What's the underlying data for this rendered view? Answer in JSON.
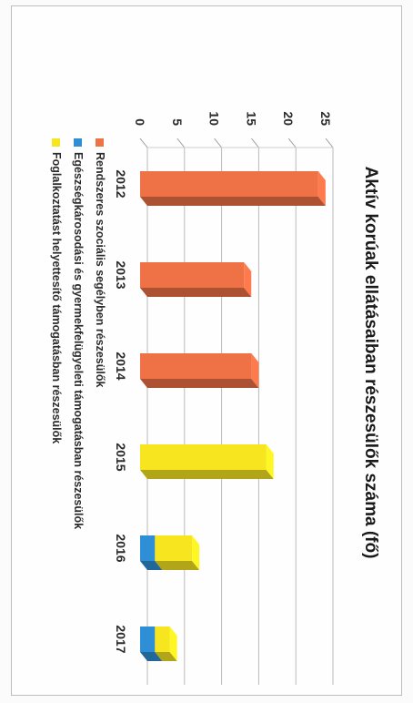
{
  "chart_data": {
    "type": "bar",
    "title": "Aktív korúak ellátásaiban részesülők száma (fő)",
    "xlabel": "",
    "ylabel": "",
    "categories": [
      "2012",
      "2013",
      "2014",
      "2015",
      "2016",
      "2017"
    ],
    "ylim": [
      0,
      25
    ],
    "yticks": [
      "0",
      "5",
      "10",
      "15",
      "20",
      "25"
    ],
    "series": [
      {
        "name": "Rendszeres szociális segélyben részesülők",
        "color": "#ef7146",
        "values": [
          24,
          14,
          15,
          0,
          0,
          0
        ]
      },
      {
        "name": "Egészségkárosodási és gyermekfelügyeleti támogatásban részesülők",
        "color": "#2f8fd6",
        "values": [
          0,
          0,
          0,
          0,
          2,
          2
        ]
      },
      {
        "name": "Foglalkoztatást helyettesítő támogatásban részesülők",
        "color": "#f7e520",
        "values": [
          0,
          0,
          0,
          17,
          5,
          2
        ]
      }
    ],
    "legend_position": "bottom",
    "grid": true,
    "style": "3d"
  }
}
